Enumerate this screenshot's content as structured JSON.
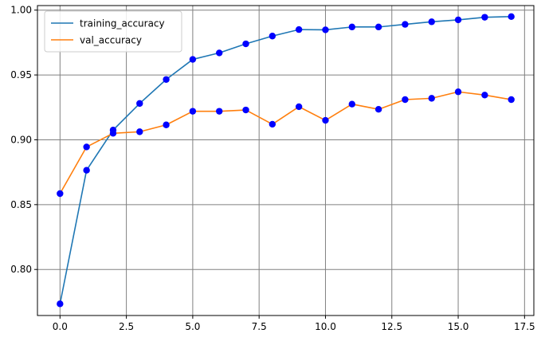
{
  "chart_data": {
    "type": "line",
    "title": "",
    "xlabel": "",
    "ylabel": "",
    "xlim": [
      -0.85,
      17.85
    ],
    "ylim": [
      0.7645,
      1.0035
    ],
    "x_ticks": [
      0.0,
      2.5,
      5.0,
      7.5,
      10.0,
      12.5,
      15.0,
      17.5
    ],
    "x_tick_labels": [
      "0.0",
      "2.5",
      "5.0",
      "7.5",
      "10.0",
      "12.5",
      "15.0",
      "17.5"
    ],
    "y_ticks": [
      0.8,
      0.85,
      0.9,
      0.95,
      1.0
    ],
    "y_tick_labels": [
      "0.80",
      "0.85",
      "0.90",
      "0.95",
      "1.00"
    ],
    "grid": true,
    "legend_position": "top-left",
    "marker_color": "#0000ff",
    "x": [
      0,
      1,
      2,
      3,
      4,
      5,
      6,
      7,
      8,
      9,
      10,
      11,
      12,
      13,
      14,
      15,
      16,
      17
    ],
    "series": [
      {
        "name": "training_accuracy",
        "color": "#1f77b4",
        "values": [
          0.7735,
          0.8765,
          0.9075,
          0.928,
          0.9465,
          0.962,
          0.967,
          0.974,
          0.98,
          0.985,
          0.9848,
          0.987,
          0.987,
          0.989,
          0.991,
          0.9925,
          0.9945,
          0.995
        ]
      },
      {
        "name": "val_accuracy",
        "color": "#ff7f0e",
        "values": [
          0.8585,
          0.8945,
          0.905,
          0.9062,
          0.9115,
          0.922,
          0.922,
          0.923,
          0.912,
          0.9255,
          0.915,
          0.9275,
          0.9235,
          0.931,
          0.932,
          0.937,
          0.9345,
          0.931
        ]
      }
    ]
  }
}
